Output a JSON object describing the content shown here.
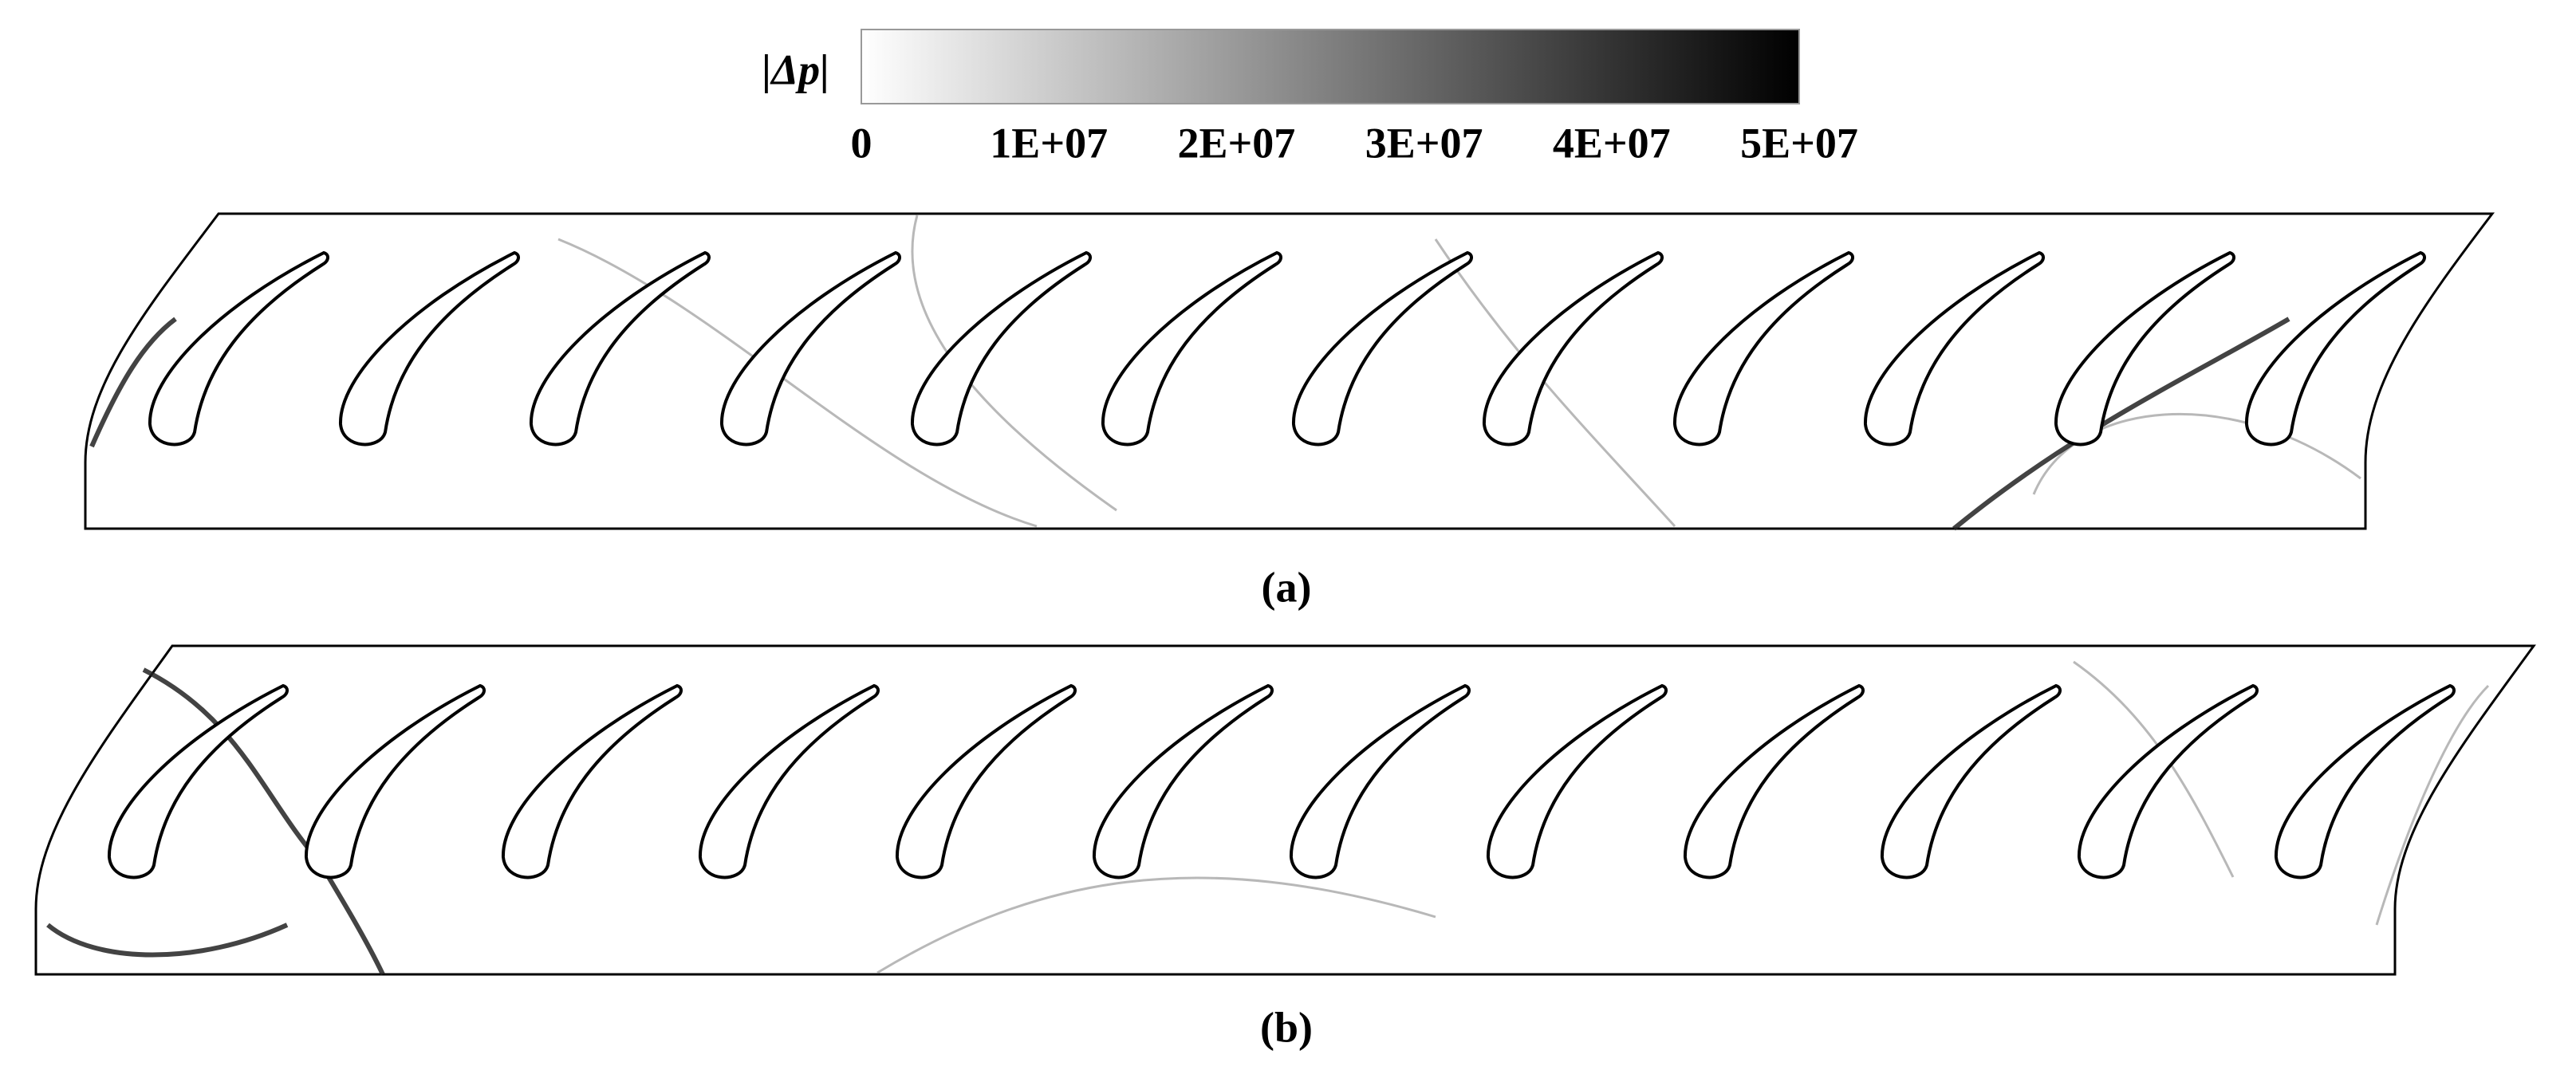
{
  "colorbar": {
    "label": "|Δp|",
    "range": [
      0,
      50000000
    ],
    "ticks": [
      0,
      {
        "value": 10000000,
        "label": "1E+07"
      },
      {
        "value": 20000000,
        "label": "2E+07"
      },
      {
        "value": 30000000,
        "label": "3E+07"
      },
      {
        "value": 40000000,
        "label": "4E+07"
      },
      {
        "value": 50000000,
        "label": "5E+07"
      }
    ]
  },
  "panels": [
    {
      "label": "(a)"
    },
    {
      "label": "(b)"
    }
  ]
}
